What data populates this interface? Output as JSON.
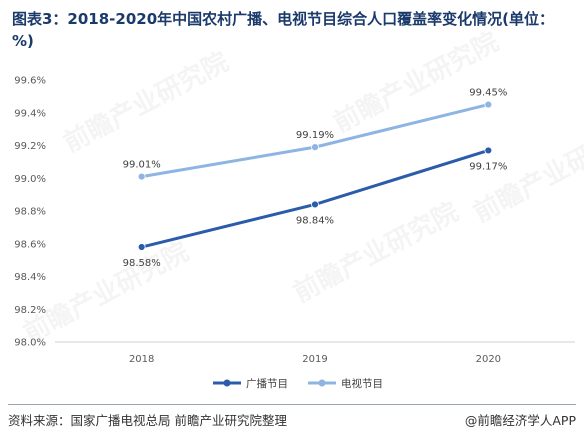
{
  "title": "图表3：2018-2020年中国农村广播、电视节目综合人口覆盖率变化情况(单位：%)",
  "source": "资料来源：国家广播电视总局 前瞻产业研究院整理",
  "credit": "@前瞻经济学人APP",
  "watermark": "前瞻产业研究院",
  "chart_data": {
    "type": "line",
    "title": "图表3：2018-2020年中国农村广播、电视节目综合人口覆盖率变化情况(单位：%)",
    "categories": [
      "2018",
      "2019",
      "2020"
    ],
    "ylim": [
      98.0,
      99.6
    ],
    "yticks": [
      98.0,
      98.2,
      98.4,
      98.6,
      98.8,
      99.0,
      99.2,
      99.4,
      99.6
    ],
    "ytick_labels": [
      "98.0%",
      "98.2%",
      "98.4%",
      "98.6%",
      "98.8%",
      "99.0%",
      "99.2%",
      "99.4%",
      "99.6%"
    ],
    "grid": false,
    "legend": "bottom",
    "series": [
      {
        "name": "广播节目",
        "values": [
          98.58,
          98.84,
          99.17
        ],
        "labels": [
          "98.58%",
          "98.84%",
          "99.17%"
        ],
        "label_position": "below",
        "color": "#2a5caa"
      },
      {
        "name": "电视节目",
        "values": [
          99.01,
          99.19,
          99.45
        ],
        "labels": [
          "99.01%",
          "99.19%",
          "99.45%"
        ],
        "label_position": "above",
        "color": "#8db4e2"
      }
    ]
  }
}
